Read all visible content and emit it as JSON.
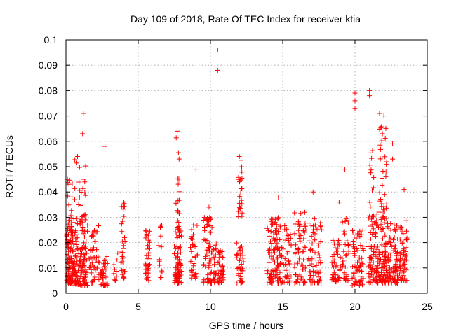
{
  "chart_data": {
    "type": "scatter",
    "title": "Day 109 of 2018, Rate Of TEC Index for receiver ktia",
    "xlabel": "GPS time / hours",
    "ylabel": "ROTI / TECUs",
    "xlim": [
      0,
      25
    ],
    "ylim": [
      0,
      0.1
    ],
    "xticks": [
      "0",
      "5",
      "10",
      "15",
      "20",
      "25"
    ],
    "yticks": [
      "0",
      "0.01",
      "0.02",
      "0.03",
      "0.04",
      "0.05",
      "0.06",
      "0.07",
      "0.08",
      "0.09",
      "0.1"
    ],
    "grid": true,
    "marker": "+",
    "series": [
      {
        "name": "ROTI",
        "color": "#ff0000",
        "clusters": [
          {
            "x": [
              0.05,
              0.5
            ],
            "y": [
              0.004,
              0.025
            ],
            "n": 120
          },
          {
            "x": [
              0.1,
              0.45
            ],
            "y": [
              0.025,
              0.046
            ],
            "n": 22
          },
          {
            "x": [
              0.5,
              1.5
            ],
            "y": [
              0.003,
              0.03
            ],
            "n": 140
          },
          {
            "x": [
              0.6,
              1.4
            ],
            "y": [
              0.03,
              0.055
            ],
            "n": 20
          },
          {
            "x": [
              1.6,
              2.3
            ],
            "y": [
              0.004,
              0.027
            ],
            "n": 50
          },
          {
            "x": [
              2.4,
              2.9
            ],
            "y": [
              0.003,
              0.015
            ],
            "n": 35
          },
          {
            "x": [
              3.3,
              3.6
            ],
            "y": [
              0.004,
              0.016
            ],
            "n": 10
          },
          {
            "x": [
              3.8,
              4.1
            ],
            "y": [
              0.006,
              0.037
            ],
            "n": 30
          },
          {
            "x": [
              5.5,
              5.8
            ],
            "y": [
              0.005,
              0.025
            ],
            "n": 40
          },
          {
            "x": [
              6.4,
              6.7
            ],
            "y": [
              0.006,
              0.028
            ],
            "n": 15
          },
          {
            "x": [
              7.5,
              8.0
            ],
            "y": [
              0.004,
              0.025
            ],
            "n": 80
          },
          {
            "x": [
              7.6,
              7.9
            ],
            "y": [
              0.025,
              0.062
            ],
            "n": 22
          },
          {
            "x": [
              8.6,
              9.1
            ],
            "y": [
              0.006,
              0.028
            ],
            "n": 35
          },
          {
            "x": [
              9.5,
              10.1
            ],
            "y": [
              0.004,
              0.03
            ],
            "n": 70
          },
          {
            "x": [
              10.2,
              10.9
            ],
            "y": [
              0.004,
              0.02
            ],
            "n": 60
          },
          {
            "x": [
              11.8,
              12.3
            ],
            "y": [
              0.004,
              0.02
            ],
            "n": 40
          },
          {
            "x": [
              11.9,
              12.2
            ],
            "y": [
              0.03,
              0.057
            ],
            "n": 22
          },
          {
            "x": [
              13.9,
              14.6
            ],
            "y": [
              0.004,
              0.03
            ],
            "n": 70
          },
          {
            "x": [
              14.6,
              15.6
            ],
            "y": [
              0.004,
              0.03
            ],
            "n": 80
          },
          {
            "x": [
              15.8,
              16.6
            ],
            "y": [
              0.004,
              0.032
            ],
            "n": 70
          },
          {
            "x": [
              16.8,
              17.7
            ],
            "y": [
              0.004,
              0.03
            ],
            "n": 70
          },
          {
            "x": [
              18.4,
              19.0
            ],
            "y": [
              0.004,
              0.022
            ],
            "n": 45
          },
          {
            "x": [
              19.1,
              19.6
            ],
            "y": [
              0.005,
              0.03
            ],
            "n": 40
          },
          {
            "x": [
              19.8,
              20.6
            ],
            "y": [
              0.003,
              0.025
            ],
            "n": 70
          },
          {
            "x": [
              20.9,
              21.6
            ],
            "y": [
              0.004,
              0.03
            ],
            "n": 80
          },
          {
            "x": [
              21.0,
              21.3
            ],
            "y": [
              0.03,
              0.058
            ],
            "n": 15
          },
          {
            "x": [
              21.5,
              22.3
            ],
            "y": [
              0.004,
              0.032
            ],
            "n": 100
          },
          {
            "x": [
              21.7,
              22.2
            ],
            "y": [
              0.032,
              0.068
            ],
            "n": 30
          },
          {
            "x": [
              22.3,
              23.1
            ],
            "y": [
              0.004,
              0.03
            ],
            "n": 90
          },
          {
            "x": [
              23.1,
              23.6
            ],
            "y": [
              0.005,
              0.03
            ],
            "n": 55
          }
        ],
        "outliers": [
          [
            10.5,
            0.096
          ],
          [
            10.5,
            0.088
          ],
          [
            1.2,
            0.071
          ],
          [
            1.15,
            0.063
          ],
          [
            2.7,
            0.058
          ],
          [
            7.7,
            0.064
          ],
          [
            9.0,
            0.049
          ],
          [
            12.0,
            0.054
          ],
          [
            17.1,
            0.04
          ],
          [
            19.3,
            0.049
          ],
          [
            20.0,
            0.079
          ],
          [
            20.0,
            0.073
          ],
          [
            20.0,
            0.076
          ],
          [
            21.0,
            0.08
          ],
          [
            21.0,
            0.078
          ],
          [
            21.7,
            0.071
          ],
          [
            22.0,
            0.07
          ],
          [
            21.9,
            0.063
          ],
          [
            22.6,
            0.059
          ],
          [
            22.6,
            0.053
          ],
          [
            0.1,
            0.045
          ],
          [
            0.8,
            0.054
          ],
          [
            1.3,
            0.044
          ],
          [
            4.0,
            0.036
          ],
          [
            14.7,
            0.038
          ],
          [
            18.9,
            0.036
          ],
          [
            23.4,
            0.041
          ],
          [
            9.9,
            0.034
          ]
        ]
      }
    ]
  }
}
